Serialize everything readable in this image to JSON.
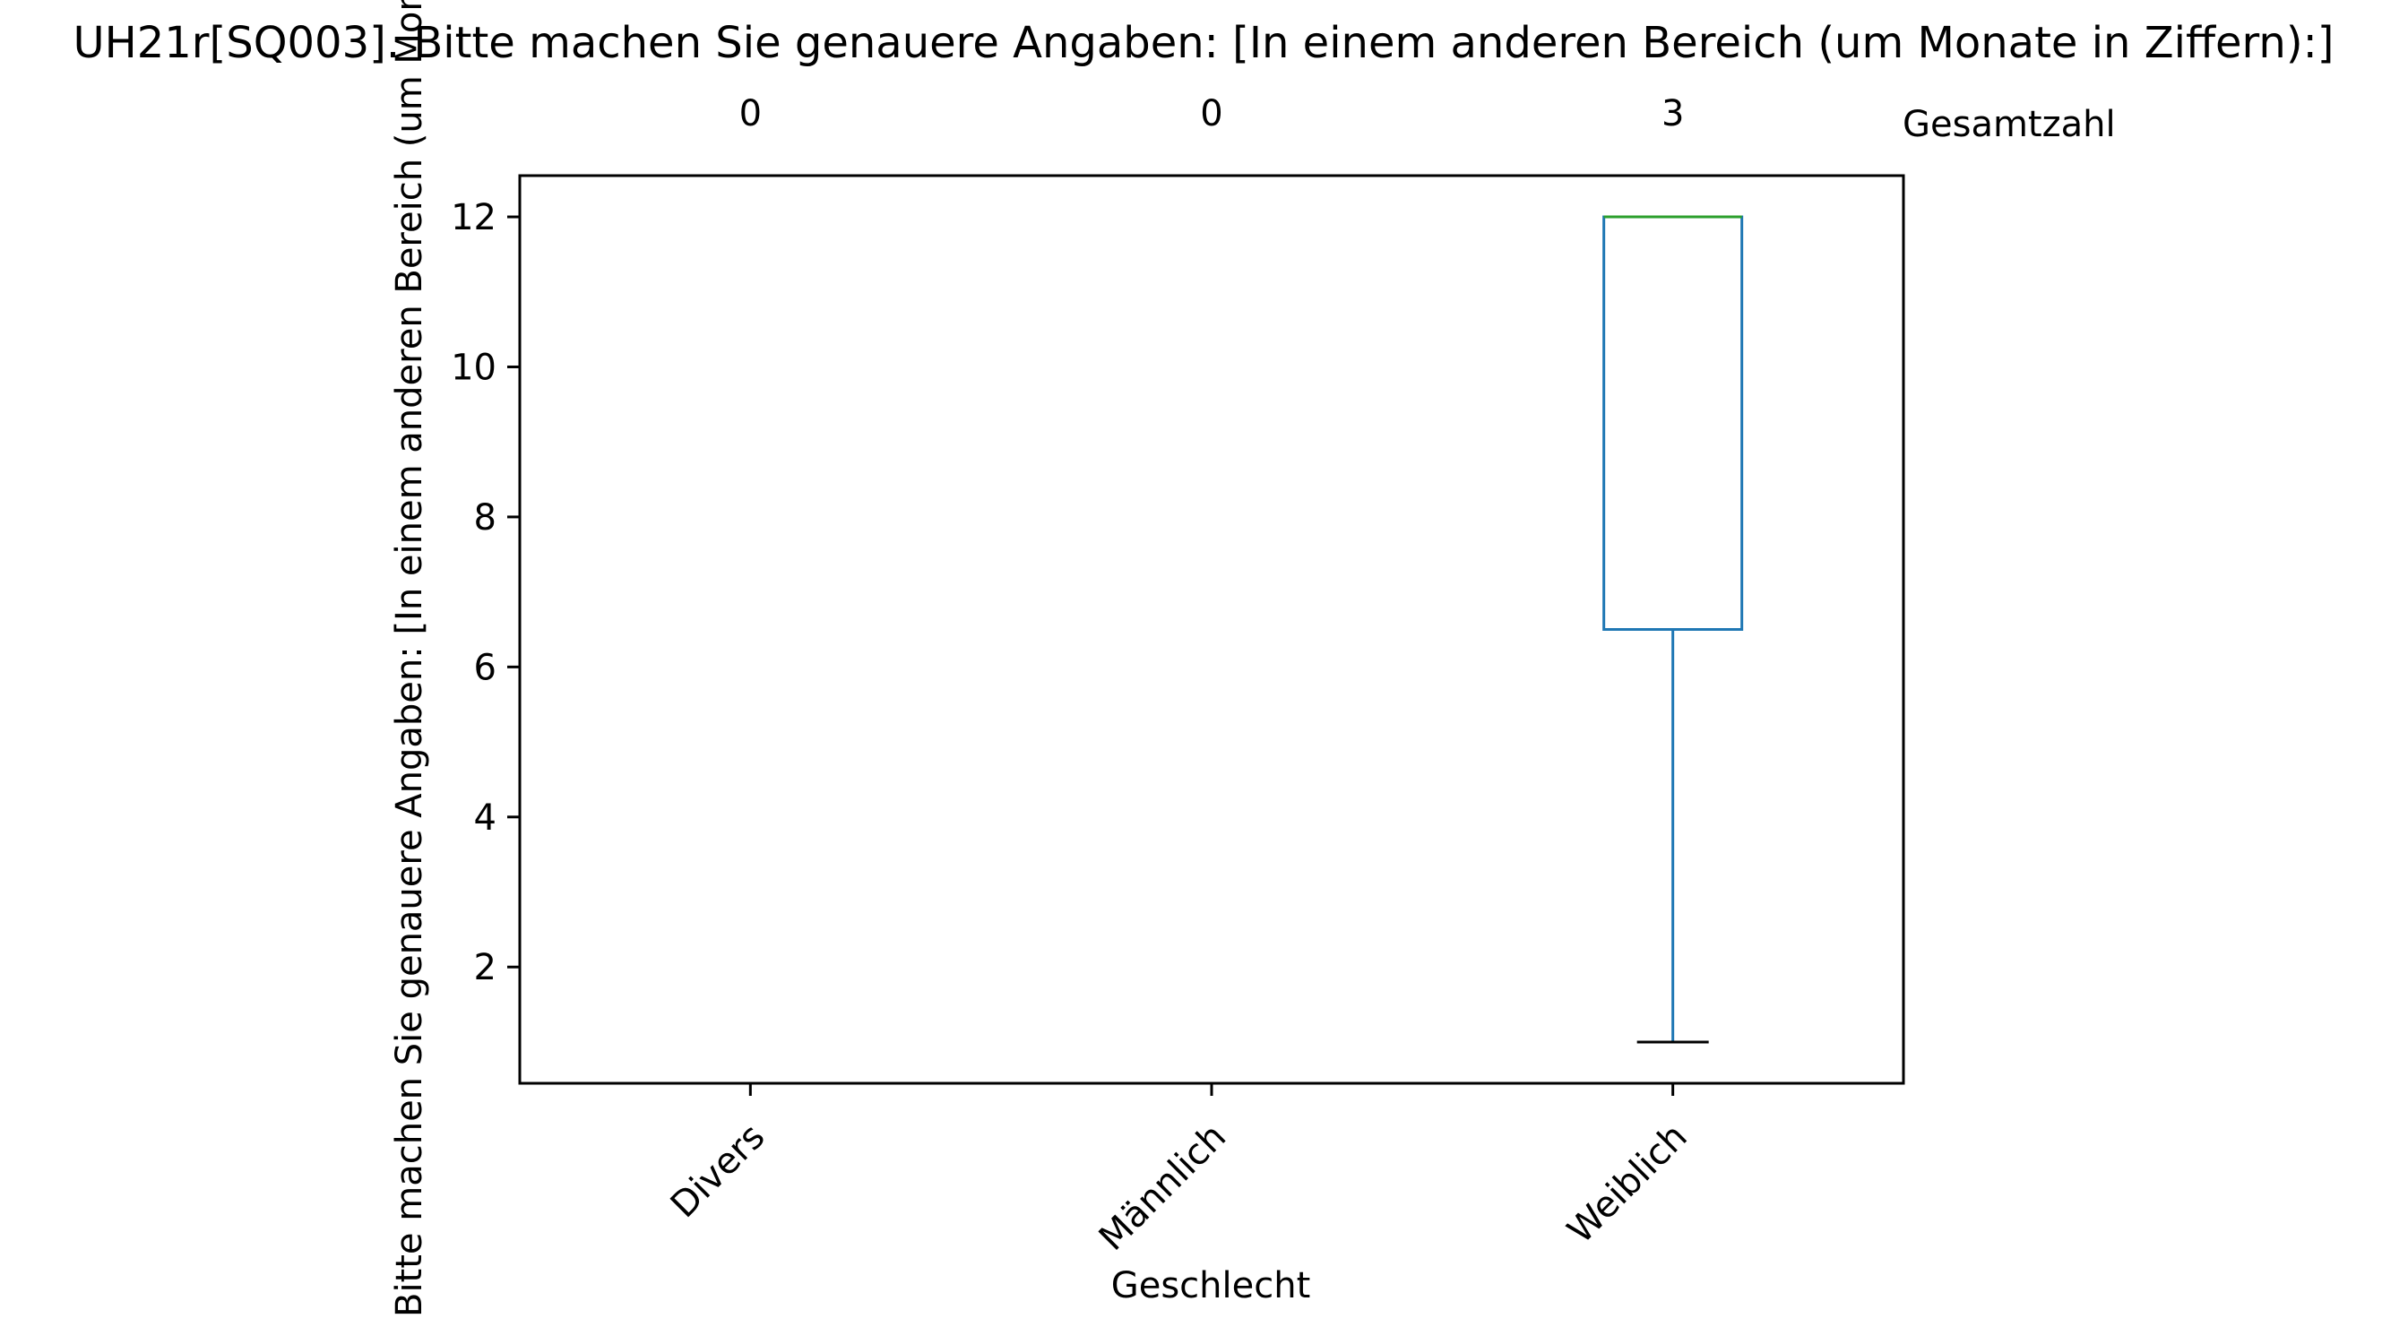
{
  "chart_data": {
    "type": "box",
    "title": "UH21r[SQ003]. Bitte machen Sie genauere Angaben: [In einem anderen Bereich (um Monate in Ziffern):]",
    "xlabel": "Geschlecht",
    "ylabel": "Bitte machen Sie genauere Angaben: [In einem anderen Bereich (um Monate in Ziffern):]",
    "categories": [
      "Divers",
      "Männlich",
      "Weiblich"
    ],
    "counts": [
      "0",
      "0",
      "3"
    ],
    "count_label": "Gesamtzahl",
    "yticks": [
      "2",
      "4",
      "6",
      "8",
      "10",
      "12"
    ],
    "ylim": [
      0.45,
      12.55
    ],
    "boxes": [
      null,
      null,
      {
        "whisker_low": 1,
        "q1": 6.5,
        "median": 12,
        "q3": 12,
        "whisker_high": 12
      }
    ],
    "grid": false,
    "colors": {
      "box": "#1f77b4",
      "median": "#2ca02c",
      "whisker": "#1f77b4",
      "cap": "#000000",
      "axes": "#000000"
    }
  }
}
